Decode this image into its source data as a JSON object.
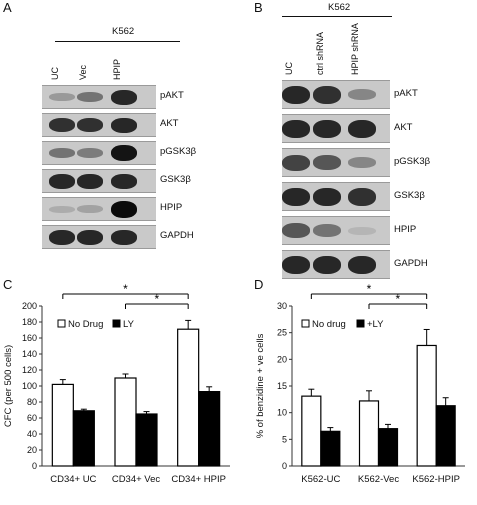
{
  "panels": {
    "A": {
      "letter": "A",
      "group": "K562",
      "lanes": [
        "UC",
        "Vec",
        "HPIP"
      ],
      "blots": [
        {
          "label": "pAKT",
          "intensity": [
            0.25,
            0.45,
            0.85
          ]
        },
        {
          "label": "AKT",
          "intensity": [
            0.8,
            0.8,
            0.85
          ]
        },
        {
          "label": "pGSK3β",
          "intensity": [
            0.45,
            0.4,
            0.95
          ]
        },
        {
          "label": "GSK3β",
          "intensity": [
            0.85,
            0.85,
            0.85
          ]
        },
        {
          "label": "HPIP",
          "intensity": [
            0.15,
            0.2,
            1.0
          ]
        },
        {
          "label": "GAPDH",
          "intensity": [
            0.85,
            0.85,
            0.85
          ]
        }
      ]
    },
    "B": {
      "letter": "B",
      "group": "K562",
      "lanes": [
        "UC",
        "ctrl shRNA",
        "HPIP shRNA"
      ],
      "blots": [
        {
          "label": "pAKT",
          "intensity": [
            0.85,
            0.8,
            0.35
          ]
        },
        {
          "label": "AKT",
          "intensity": [
            0.85,
            0.85,
            0.85
          ]
        },
        {
          "label": "pGSK3β",
          "intensity": [
            0.7,
            0.6,
            0.35
          ]
        },
        {
          "label": "GSK3β",
          "intensity": [
            0.85,
            0.85,
            0.8
          ]
        },
        {
          "label": "HPIP",
          "intensity": [
            0.6,
            0.45,
            0.1
          ]
        },
        {
          "label": "GAPDH",
          "intensity": [
            0.85,
            0.85,
            0.85
          ]
        }
      ]
    },
    "C": {
      "letter": "C"
    },
    "D": {
      "letter": "D"
    }
  },
  "chart_data": [
    {
      "panel": "C",
      "type": "bar",
      "categories": [
        "CD34+ UC",
        "CD34+ Vec",
        "CD34+ HPIP"
      ],
      "series": [
        {
          "name": "No Drug",
          "values": [
            102,
            110,
            171
          ],
          "errors": [
            6,
            5,
            11
          ],
          "color": "#ffffff"
        },
        {
          "name": "LY",
          "values": [
            69,
            65,
            93
          ],
          "errors": [
            2,
            3,
            6
          ],
          "color": "#000000"
        }
      ],
      "ylabel": "CFC (per 500 cells)",
      "ylim": [
        0,
        200
      ],
      "yticks": [
        0,
        20,
        40,
        60,
        80,
        100,
        120,
        140,
        160,
        180,
        200
      ],
      "legend": "top-left",
      "grid": false,
      "significance": [
        {
          "from": 0,
          "to": 2,
          "label": "*"
        },
        {
          "from": 1,
          "to": 2,
          "label": "*"
        }
      ]
    },
    {
      "panel": "D",
      "type": "bar",
      "categories": [
        "K562-UC",
        "K562-Vec",
        "K562-HPIP"
      ],
      "series": [
        {
          "name": "No drug",
          "values": [
            13.1,
            12.2,
            22.6
          ],
          "errors": [
            1.3,
            1.9,
            3.0
          ],
          "color": "#ffffff"
        },
        {
          "name": "+LY",
          "values": [
            6.5,
            7.0,
            11.3
          ],
          "errors": [
            0.7,
            0.8,
            1.5
          ],
          "color": "#000000"
        }
      ],
      "ylabel": "% of benzidine + ve cells",
      "ylim": [
        0,
        30
      ],
      "yticks": [
        0,
        5,
        10,
        15,
        20,
        25,
        30
      ],
      "legend": "top-left",
      "grid": false,
      "significance": [
        {
          "from": 0,
          "to": 2,
          "label": "*"
        },
        {
          "from": 1,
          "to": 2,
          "label": "*"
        }
      ]
    }
  ]
}
